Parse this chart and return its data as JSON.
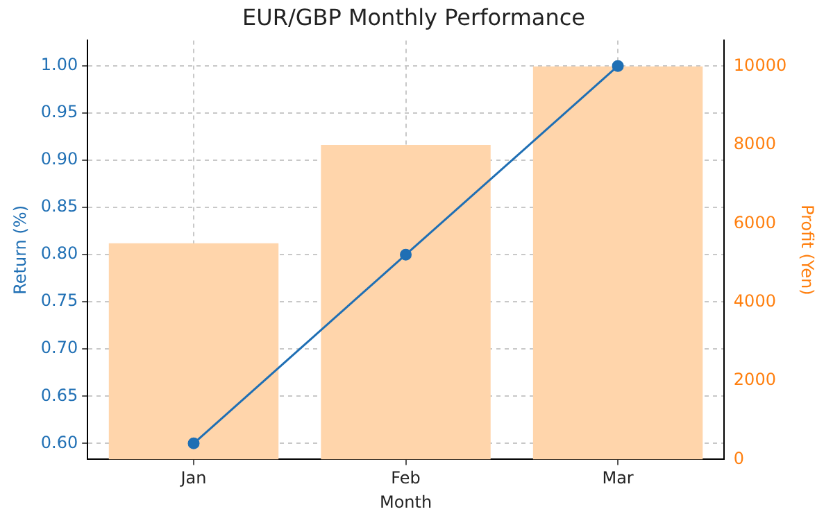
{
  "chart_data": {
    "type": "bar",
    "title": "EUR/GBP Monthly Performance",
    "xlabel": "Month",
    "ylabel": "Return (%)",
    "y2label": "Profit (Yen)",
    "categories": [
      "Jan",
      "Feb",
      "Mar"
    ],
    "series": [
      {
        "axis": "y2",
        "color": "#ffd5ab",
        "values": [
          5500,
          8000,
          10000
        ]
      },
      {
        "type": "line",
        "axis": "y",
        "color": "#1f6fb4",
        "values": [
          0.6,
          0.8,
          1.0
        ]
      }
    ],
    "ylim": [
      0.583,
      1.027
    ],
    "yticks": [
      {
        "value": 0.6,
        "label": "0.60"
      },
      {
        "value": 0.65,
        "label": "0.65"
      },
      {
        "value": 0.7,
        "label": "0.70"
      },
      {
        "value": 0.75,
        "label": "0.75"
      },
      {
        "value": 0.8,
        "label": "0.80"
      },
      {
        "value": 0.85,
        "label": "0.85"
      },
      {
        "value": 0.9,
        "label": "0.90"
      },
      {
        "value": 0.95,
        "label": "0.95"
      },
      {
        "value": 1.0,
        "label": "1.00"
      }
    ],
    "y2lim": [
      0,
      10660
    ],
    "y2ticks": [
      0,
      2000,
      4000,
      6000,
      8000,
      10000
    ],
    "grid": true,
    "legend": false,
    "marker": "circle",
    "line_style": "solid"
  }
}
